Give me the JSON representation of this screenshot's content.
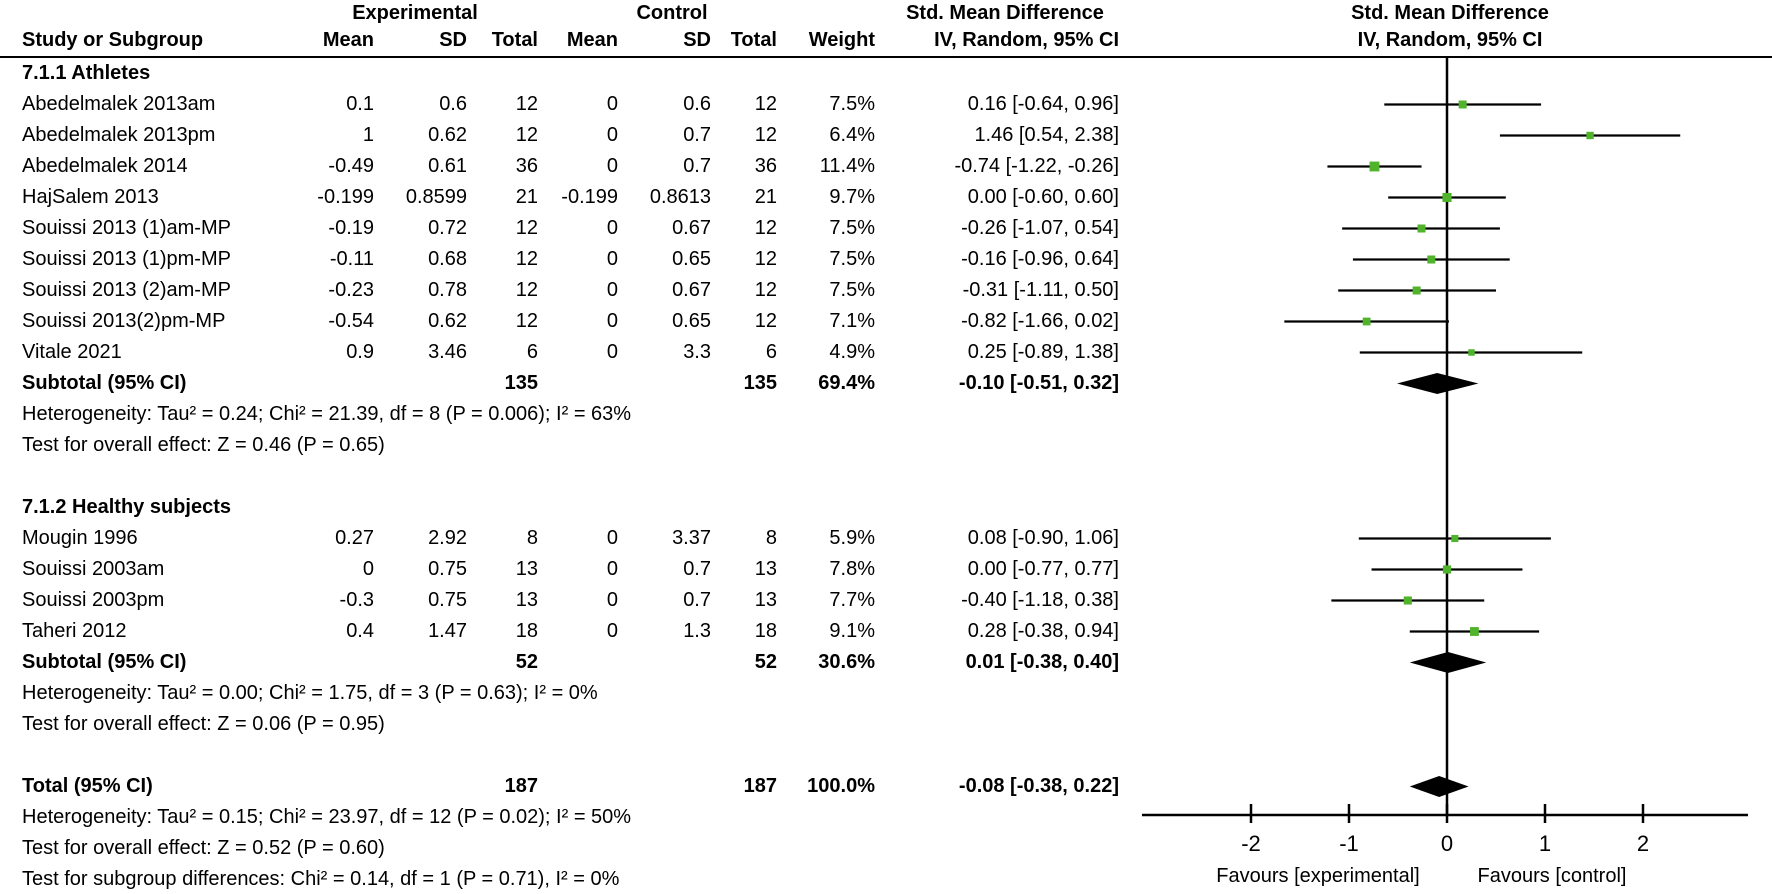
{
  "header": {
    "group_headers": [
      "Experimental",
      "Control",
      "Std. Mean Difference",
      "Std. Mean Difference"
    ],
    "columns": [
      "Study or Subgroup",
      "Mean",
      "SD",
      "Total",
      "Mean",
      "SD",
      "Total",
      "Weight",
      "IV, Random, 95% CI",
      "IV, Random, 95% CI"
    ]
  },
  "colors": {
    "marker_green": "#4fb32b",
    "line_black": "#000000",
    "background": "#ffffff"
  },
  "chart_data": {
    "type": "forest",
    "effect_measure": "Std. Mean Difference",
    "model": "IV, Random, 95% CI",
    "axis": {
      "ticks": [
        -2,
        -1,
        0,
        1,
        2
      ],
      "xlim": [
        -3.1,
        3.1
      ],
      "zero_line": 0,
      "label_left": "Favours [experimental]",
      "label_right": "Favours [control]"
    },
    "rows": [
      {
        "type": "group",
        "label": "7.1.1 Athletes"
      },
      {
        "type": "study",
        "label": "Abedelmalek 2013am",
        "mean_e": "0.1",
        "sd_e": "0.6",
        "n_e": "12",
        "mean_c": "0",
        "sd_c": "0.6",
        "n_c": "12",
        "weight": "7.5%",
        "ci_text": "0.16 [-0.64, 0.96]",
        "est": 0.16,
        "lo": -0.64,
        "hi": 0.96,
        "w": 7.5
      },
      {
        "type": "study",
        "label": "Abedelmalek 2013pm",
        "mean_e": "1",
        "sd_e": "0.62",
        "n_e": "12",
        "mean_c": "0",
        "sd_c": "0.7",
        "n_c": "12",
        "weight": "6.4%",
        "ci_text": "1.46 [0.54, 2.38]",
        "est": 1.46,
        "lo": 0.54,
        "hi": 2.38,
        "w": 6.4
      },
      {
        "type": "study",
        "label": "Abedelmalek 2014",
        "mean_e": "-0.49",
        "sd_e": "0.61",
        "n_e": "36",
        "mean_c": "0",
        "sd_c": "0.7",
        "n_c": "36",
        "weight": "11.4%",
        "ci_text": "-0.74 [-1.22, -0.26]",
        "est": -0.74,
        "lo": -1.22,
        "hi": -0.26,
        "w": 11.4
      },
      {
        "type": "study",
        "label": "HajSalem 2013",
        "mean_e": "-0.199",
        "sd_e": "0.8599",
        "n_e": "21",
        "mean_c": "-0.199",
        "sd_c": "0.8613",
        "n_c": "21",
        "weight": "9.7%",
        "ci_text": "0.00 [-0.60, 0.60]",
        "est": 0.0,
        "lo": -0.6,
        "hi": 0.6,
        "w": 9.7
      },
      {
        "type": "study",
        "label": "Souissi 2013 (1)am-MP",
        "mean_e": "-0.19",
        "sd_e": "0.72",
        "n_e": "12",
        "mean_c": "0",
        "sd_c": "0.67",
        "n_c": "12",
        "weight": "7.5%",
        "ci_text": "-0.26 [-1.07, 0.54]",
        "est": -0.26,
        "lo": -1.07,
        "hi": 0.54,
        "w": 7.5
      },
      {
        "type": "study",
        "label": "Souissi 2013 (1)pm-MP",
        "mean_e": "-0.11",
        "sd_e": "0.68",
        "n_e": "12",
        "mean_c": "0",
        "sd_c": "0.65",
        "n_c": "12",
        "weight": "7.5%",
        "ci_text": "-0.16 [-0.96, 0.64]",
        "est": -0.16,
        "lo": -0.96,
        "hi": 0.64,
        "w": 7.5
      },
      {
        "type": "study",
        "label": "Souissi 2013 (2)am-MP",
        "mean_e": "-0.23",
        "sd_e": "0.78",
        "n_e": "12",
        "mean_c": "0",
        "sd_c": "0.67",
        "n_c": "12",
        "weight": "7.5%",
        "ci_text": "-0.31 [-1.11, 0.50]",
        "est": -0.31,
        "lo": -1.11,
        "hi": 0.5,
        "w": 7.5
      },
      {
        "type": "study",
        "label": "Souissi 2013(2)pm-MP",
        "mean_e": "-0.54",
        "sd_e": "0.62",
        "n_e": "12",
        "mean_c": "0",
        "sd_c": "0.65",
        "n_c": "12",
        "weight": "7.1%",
        "ci_text": "-0.82 [-1.66, 0.02]",
        "est": -0.82,
        "lo": -1.66,
        "hi": 0.02,
        "w": 7.1
      },
      {
        "type": "study",
        "label": "Vitale 2021",
        "mean_e": "0.9",
        "sd_e": "3.46",
        "n_e": "6",
        "mean_c": "0",
        "sd_c": "3.3",
        "n_c": "6",
        "weight": "4.9%",
        "ci_text": "0.25 [-0.89, 1.38]",
        "est": 0.25,
        "lo": -0.89,
        "hi": 1.38,
        "w": 4.9
      },
      {
        "type": "subtotal",
        "label": "Subtotal (95% CI)",
        "n_e": "135",
        "n_c": "135",
        "weight": "69.4%",
        "ci_text": "-0.10 [-0.51, 0.32]",
        "est": -0.1,
        "lo": -0.51,
        "hi": 0.32
      },
      {
        "type": "stat",
        "label": "Heterogeneity: Tau² = 0.24; Chi² = 21.39, df = 8 (P = 0.006); I² = 63%"
      },
      {
        "type": "stat",
        "label": "Test for overall effect: Z = 0.46 (P = 0.65)"
      },
      {
        "type": "blank"
      },
      {
        "type": "group",
        "label": "7.1.2 Healthy subjects"
      },
      {
        "type": "study",
        "label": "Mougin 1996",
        "mean_e": "0.27",
        "sd_e": "2.92",
        "n_e": "8",
        "mean_c": "0",
        "sd_c": "3.37",
        "n_c": "8",
        "weight": "5.9%",
        "ci_text": "0.08 [-0.90, 1.06]",
        "est": 0.08,
        "lo": -0.9,
        "hi": 1.06,
        "w": 5.9
      },
      {
        "type": "study",
        "label": "Souissi 2003am",
        "mean_e": "0",
        "sd_e": "0.75",
        "n_e": "13",
        "mean_c": "0",
        "sd_c": "0.7",
        "n_c": "13",
        "weight": "7.8%",
        "ci_text": "0.00 [-0.77, 0.77]",
        "est": 0.0,
        "lo": -0.77,
        "hi": 0.77,
        "w": 7.8
      },
      {
        "type": "study",
        "label": "Souissi 2003pm",
        "mean_e": "-0.3",
        "sd_e": "0.75",
        "n_e": "13",
        "mean_c": "0",
        "sd_c": "0.7",
        "n_c": "13",
        "weight": "7.7%",
        "ci_text": "-0.40 [-1.18, 0.38]",
        "est": -0.4,
        "lo": -1.18,
        "hi": 0.38,
        "w": 7.7
      },
      {
        "type": "study",
        "label": "Taheri 2012",
        "mean_e": "0.4",
        "sd_e": "1.47",
        "n_e": "18",
        "mean_c": "0",
        "sd_c": "1.3",
        "n_c": "18",
        "weight": "9.1%",
        "ci_text": "0.28 [-0.38, 0.94]",
        "est": 0.28,
        "lo": -0.38,
        "hi": 0.94,
        "w": 9.1
      },
      {
        "type": "subtotal",
        "label": "Subtotal (95% CI)",
        "n_e": "52",
        "n_c": "52",
        "weight": "30.6%",
        "ci_text": "0.01 [-0.38, 0.40]",
        "est": 0.01,
        "lo": -0.38,
        "hi": 0.4
      },
      {
        "type": "stat",
        "label": "Heterogeneity: Tau² = 0.00; Chi² = 1.75, df = 3 (P = 0.63); I² = 0%"
      },
      {
        "type": "stat",
        "label": "Test for overall effect: Z = 0.06 (P = 0.95)"
      },
      {
        "type": "blank"
      },
      {
        "type": "total",
        "label": "Total (95% CI)",
        "n_e": "187",
        "n_c": "187",
        "weight": "100.0%",
        "ci_text": "-0.08 [-0.38, 0.22]",
        "est": -0.08,
        "lo": -0.38,
        "hi": 0.22
      },
      {
        "type": "stat",
        "label": "Heterogeneity: Tau² = 0.15; Chi² = 23.97, df = 12 (P = 0.02); I² = 50%"
      },
      {
        "type": "stat",
        "label": "Test for overall effect: Z = 0.52 (P = 0.60)"
      },
      {
        "type": "stat",
        "label": "Test for subgroup differences: Chi² = 0.14, df = 1 (P = 0.71), I² = 0%"
      }
    ]
  }
}
